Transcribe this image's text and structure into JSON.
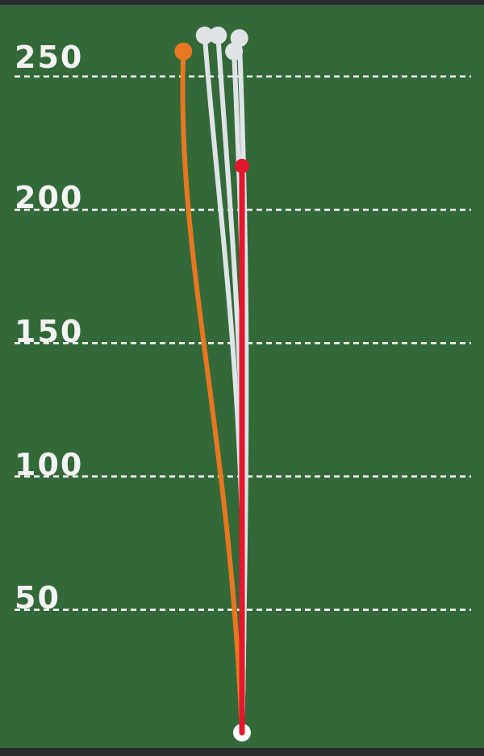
{
  "chart_data": {
    "type": "line",
    "title": "",
    "xlabel": "",
    "ylabel": "",
    "ylim": [
      0,
      270
    ],
    "grid": true,
    "y_ticks": [
      {
        "value": 50,
        "label": "50"
      },
      {
        "value": 100,
        "label": "100"
      },
      {
        "value": 150,
        "label": "150"
      },
      {
        "value": 200,
        "label": "200"
      },
      {
        "value": 250,
        "label": "250"
      }
    ],
    "shots": [
      {
        "color": "#e87722",
        "carry": 260,
        "lateral": -22,
        "bend": -6
      },
      {
        "color": "#dfe3e6",
        "carry": 266,
        "lateral": -14,
        "bend": 4
      },
      {
        "color": "#dfe3e6",
        "carry": 266,
        "lateral": -9,
        "bend": 4
      },
      {
        "color": "#dfe3e6",
        "carry": 265,
        "lateral": -1,
        "bend": 3
      },
      {
        "color": "#dfe3e6",
        "carry": 260,
        "lateral": -3,
        "bend": 3
      },
      {
        "color": "#e4182c",
        "carry": 217,
        "lateral": 0,
        "bend": 0
      }
    ],
    "colors": {
      "background": "#336938",
      "gridline": "#ffffff",
      "origin": "#ffffff"
    }
  }
}
